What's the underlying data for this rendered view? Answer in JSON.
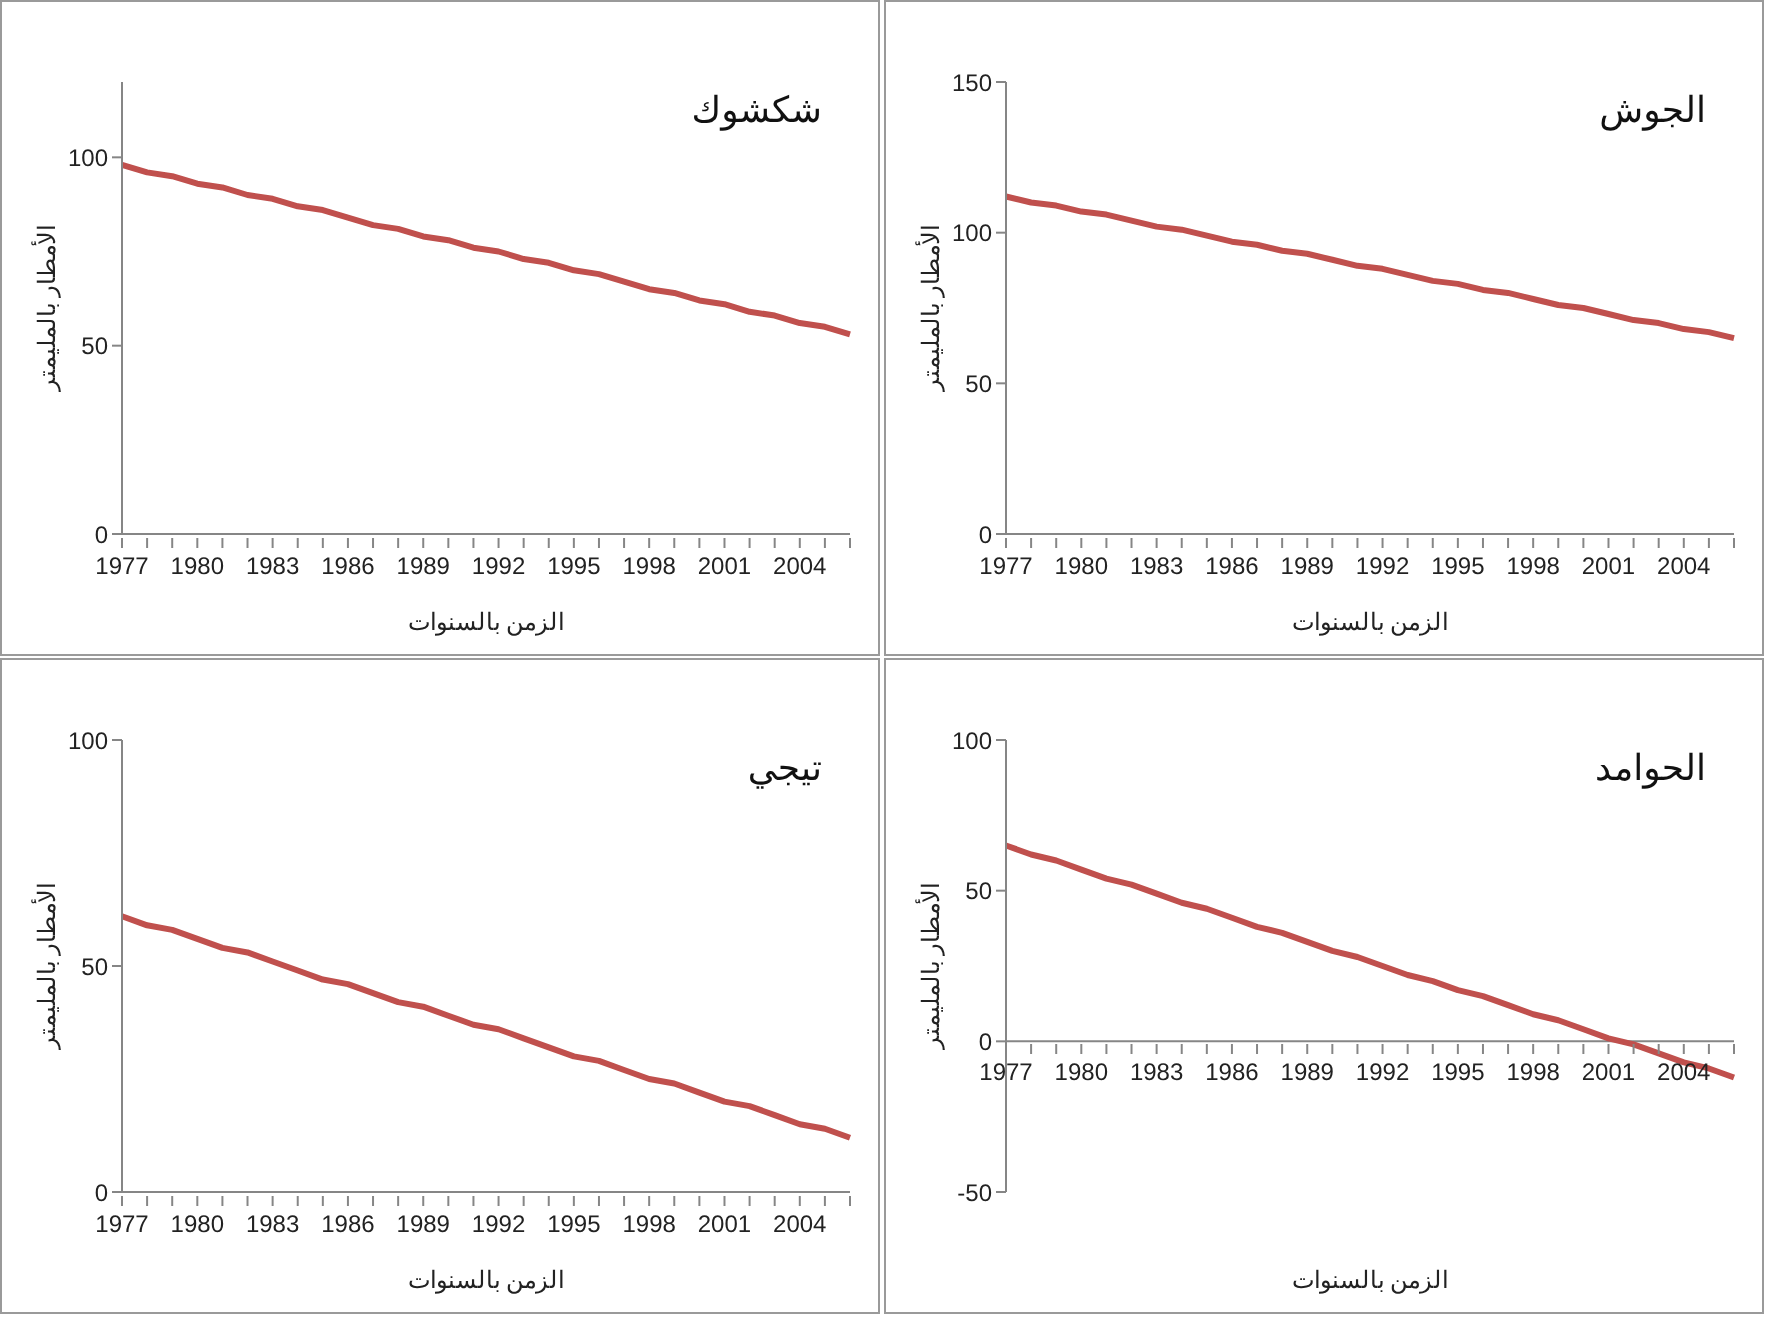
{
  "chart_data": [
    {
      "type": "line",
      "title": "شكشوك",
      "xlabel": "الزمن بالسنوات",
      "ylabel": "الأمطار بالمليمتر",
      "categories": [
        "1977",
        null,
        null,
        "1980",
        null,
        null,
        "1983",
        null,
        null,
        "1986",
        null,
        null,
        "1989",
        null,
        null,
        "1992",
        null,
        null,
        "1995",
        null,
        null,
        "1998",
        null,
        null,
        "2001",
        null,
        null,
        "2004",
        null,
        null
      ],
      "ylim": [
        0,
        120
      ],
      "yticks": [
        0,
        50,
        100
      ],
      "grid": false,
      "legend": false,
      "marker": "none",
      "series": [
        {
          "color": "#c0504d",
          "values": [
            98,
            96,
            95,
            93,
            92,
            90,
            89,
            87,
            86,
            84,
            82,
            81,
            79,
            78,
            76,
            75,
            73,
            72,
            70,
            69,
            67,
            65,
            64,
            62,
            61,
            59,
            58,
            56,
            55,
            53
          ]
        }
      ]
    },
    {
      "type": "line",
      "title": "الجوش",
      "xlabel": "الزمن بالسنوات",
      "ylabel": "الأمطار بالمليمتر",
      "categories": [
        "1977",
        null,
        null,
        "1980",
        null,
        null,
        "1983",
        null,
        null,
        "1986",
        null,
        null,
        "1989",
        null,
        null,
        "1992",
        null,
        null,
        "1995",
        null,
        null,
        "1998",
        null,
        null,
        "2001",
        null,
        null,
        "2004",
        null,
        null
      ],
      "ylim": [
        0,
        150
      ],
      "yticks": [
        0,
        50,
        100,
        150
      ],
      "grid": false,
      "legend": false,
      "marker": "none",
      "series": [
        {
          "color": "#c0504d",
          "values": [
            112,
            110,
            109,
            107,
            106,
            104,
            102,
            101,
            99,
            97,
            96,
            94,
            93,
            91,
            89,
            88,
            86,
            84,
            83,
            81,
            80,
            78,
            76,
            75,
            73,
            71,
            70,
            68,
            67,
            65
          ]
        }
      ]
    },
    {
      "type": "line",
      "title": "تيجي",
      "xlabel": "الزمن بالسنوات",
      "ylabel": "الأمطار بالمليمتر",
      "categories": [
        "1977",
        null,
        null,
        "1980",
        null,
        null,
        "1983",
        null,
        null,
        "1986",
        null,
        null,
        "1989",
        null,
        null,
        "1992",
        null,
        null,
        "1995",
        null,
        null,
        "1998",
        null,
        null,
        "2001",
        null,
        null,
        "2004",
        null,
        null
      ],
      "ylim": [
        0,
        100
      ],
      "yticks": [
        0,
        50,
        100
      ],
      "grid": false,
      "legend": false,
      "marker": "none",
      "series": [
        {
          "color": "#c0504d",
          "values": [
            61,
            59,
            58,
            56,
            54,
            53,
            51,
            49,
            47,
            46,
            44,
            42,
            41,
            39,
            37,
            36,
            34,
            32,
            30,
            29,
            27,
            25,
            24,
            22,
            20,
            19,
            17,
            15,
            14,
            12
          ]
        }
      ]
    },
    {
      "type": "line",
      "title": "الحوامد",
      "xlabel": "الزمن بالسنوات",
      "ylabel": "الأمطار بالمليمتر",
      "categories": [
        "1977",
        null,
        null,
        "1980",
        null,
        null,
        "1983",
        null,
        null,
        "1986",
        null,
        null,
        "1989",
        null,
        null,
        "1992",
        null,
        null,
        "1995",
        null,
        null,
        "1998",
        null,
        null,
        "2001",
        null,
        null,
        "2004",
        null,
        null
      ],
      "ylim": [
        -50,
        100
      ],
      "yticks": [
        -50,
        0,
        50,
        100
      ],
      "grid": false,
      "legend": false,
      "marker": "none",
      "series": [
        {
          "color": "#c0504d",
          "values": [
            65,
            62,
            60,
            57,
            54,
            52,
            49,
            46,
            44,
            41,
            38,
            36,
            33,
            30,
            28,
            25,
            22,
            20,
            17,
            15,
            12,
            9,
            7,
            4,
            1,
            -1,
            -4,
            -7,
            -9,
            -12
          ]
        }
      ]
    }
  ]
}
